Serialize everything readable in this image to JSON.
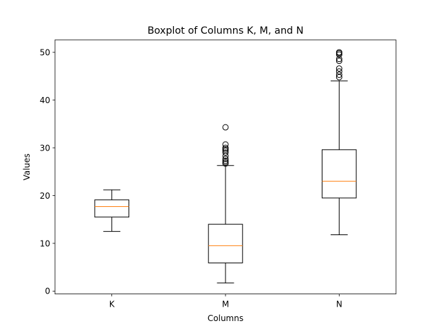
{
  "chart_data": {
    "type": "boxplot",
    "title": "Boxplot of Columns K, M, and N",
    "xlabel": "Columns",
    "ylabel": "Values",
    "categories": [
      "K",
      "M",
      "N"
    ],
    "ylim": [
      -0.6,
      52.6
    ],
    "yticks": [
      "0",
      "10",
      "20",
      "30",
      "40",
      "50"
    ],
    "grid": false,
    "series": [
      {
        "category": "K",
        "whisker_low": 12.5,
        "q1": 15.5,
        "median": 17.7,
        "q3": 19.1,
        "whisker_high": 21.2,
        "outliers": []
      },
      {
        "category": "M",
        "whisker_low": 1.7,
        "q1": 5.9,
        "median": 9.5,
        "q3": 14.0,
        "whisker_high": 26.3,
        "outliers": [
          26.7,
          27.0,
          27.3,
          27.7,
          28.3,
          29.0,
          29.4,
          29.7,
          30.0,
          30.7,
          34.3
        ]
      },
      {
        "category": "N",
        "whisker_low": 11.8,
        "q1": 19.5,
        "median": 23.0,
        "q3": 29.6,
        "whisker_high": 44.0,
        "outliers": [
          44.8,
          45.3,
          46.0,
          46.6,
          48.2,
          48.6,
          49.5,
          49.8,
          50.0
        ]
      }
    ],
    "colors": {
      "box": "#000000",
      "median": "#ff7f0e",
      "flier": "#000000"
    }
  }
}
